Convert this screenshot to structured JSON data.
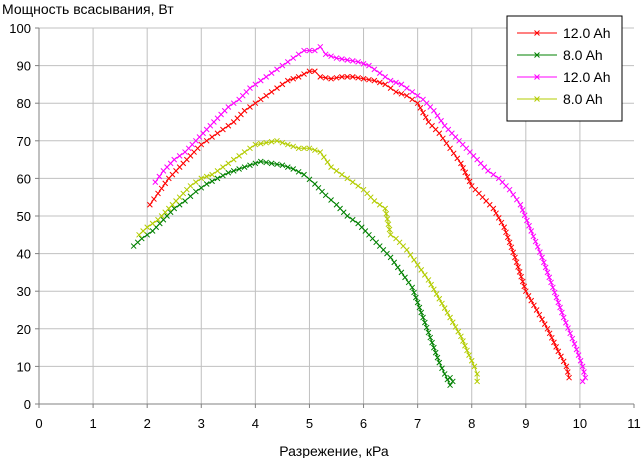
{
  "chart_data": {
    "type": "line",
    "ylabel": "Мощность всасывания, Вт",
    "xlabel": "Разрежение, кРа",
    "xlim": [
      0,
      11
    ],
    "ylim": [
      0,
      100
    ],
    "xticks": [
      "0",
      "1",
      "2",
      "3",
      "4",
      "5",
      "6",
      "7",
      "8",
      "9",
      "10",
      "11"
    ],
    "yticks": [
      "0",
      "10",
      "20",
      "30",
      "40",
      "50",
      "60",
      "70",
      "80",
      "90",
      "100"
    ],
    "grid": true,
    "legend_position": "top-right",
    "series": [
      {
        "name": "12.0 Ah",
        "color": "#ff0000",
        "x": [
          2.05,
          2.2,
          2.4,
          2.6,
          2.8,
          3.0,
          3.2,
          3.4,
          3.6,
          3.8,
          4.0,
          4.2,
          4.4,
          4.6,
          4.8,
          5.0,
          5.1,
          5.2,
          5.4,
          5.6,
          5.8,
          6.0,
          6.2,
          6.4,
          6.6,
          6.8,
          7.0,
          7.2,
          7.4,
          7.6,
          7.8,
          8.0,
          8.2,
          8.4,
          8.6,
          8.8,
          9.0,
          9.2,
          9.4,
          9.6,
          9.75,
          9.8
        ],
        "y": [
          53,
          56,
          60,
          63,
          66,
          69,
          71,
          73,
          75,
          78,
          80,
          82,
          84,
          86,
          87,
          88.5,
          88.5,
          87,
          86.5,
          87,
          87,
          86.5,
          86,
          85,
          83,
          82,
          80,
          75,
          72,
          68,
          64,
          58,
          55,
          52,
          47,
          39,
          30,
          25,
          20,
          14,
          10,
          7
        ]
      },
      {
        "name": "8.0 Ah",
        "color": "#008000",
        "x": [
          1.75,
          1.9,
          2.1,
          2.3,
          2.5,
          2.7,
          2.9,
          3.1,
          3.3,
          3.5,
          3.7,
          3.9,
          4.1,
          4.3,
          4.5,
          4.7,
          4.9,
          5.1,
          5.3,
          5.5,
          5.7,
          5.9,
          6.1,
          6.3,
          6.5,
          6.7,
          6.9,
          7.0,
          7.1,
          7.2,
          7.3,
          7.4,
          7.5,
          7.6,
          7.65,
          7.6
        ],
        "y": [
          42,
          44,
          46,
          49,
          52,
          54,
          56.5,
          58.5,
          60,
          61.5,
          62.5,
          63.5,
          64.5,
          64,
          63.5,
          62.5,
          61,
          58.5,
          55.5,
          53,
          50,
          48,
          45,
          42,
          39,
          35,
          31,
          27,
          23,
          19,
          15,
          11,
          8,
          5,
          6,
          7
        ]
      },
      {
        "name": "12.0 Ah",
        "color": "#ff00ff",
        "x": [
          2.15,
          2.3,
          2.5,
          2.7,
          2.9,
          3.1,
          3.3,
          3.5,
          3.7,
          3.9,
          4.1,
          4.3,
          4.5,
          4.7,
          4.9,
          5.1,
          5.2,
          5.3,
          5.5,
          5.7,
          5.9,
          6.1,
          6.3,
          6.5,
          6.7,
          6.9,
          7.1,
          7.3,
          7.5,
          7.7,
          7.9,
          8.1,
          8.3,
          8.5,
          8.7,
          8.9,
          9.1,
          9.3,
          9.5,
          9.7,
          9.9,
          10.05,
          10.1,
          10.05
        ],
        "y": [
          59,
          62,
          65,
          67,
          70,
          73,
          76,
          79,
          81,
          84,
          86,
          88,
          90,
          92,
          94,
          94,
          95,
          93,
          92,
          91.5,
          91,
          90,
          88,
          86,
          85,
          83,
          81,
          78,
          74,
          71,
          68,
          65,
          62,
          60,
          57,
          53,
          46,
          39,
          31,
          23,
          16,
          10,
          7,
          6
        ]
      },
      {
        "name": "8.0 Ah",
        "color": "#b3cc00",
        "x": [
          1.85,
          2.0,
          2.2,
          2.4,
          2.6,
          2.8,
          3.0,
          3.2,
          3.4,
          3.6,
          3.8,
          4.0,
          4.2,
          4.4,
          4.6,
          4.8,
          5.0,
          5.2,
          5.4,
          5.6,
          5.8,
          6.0,
          6.2,
          6.4,
          6.5,
          6.6,
          6.8,
          7.0,
          7.2,
          7.4,
          7.6,
          7.8,
          7.95,
          8.05,
          8.1,
          8.1
        ],
        "y": [
          45,
          47,
          49,
          52,
          55,
          58,
          60,
          61,
          63,
          65,
          67,
          69,
          69.5,
          70,
          69,
          68,
          68,
          67,
          63,
          61,
          59,
          57,
          54,
          52,
          45,
          44,
          41,
          37,
          33,
          28,
          23,
          18,
          13,
          10,
          8,
          6
        ]
      }
    ]
  }
}
